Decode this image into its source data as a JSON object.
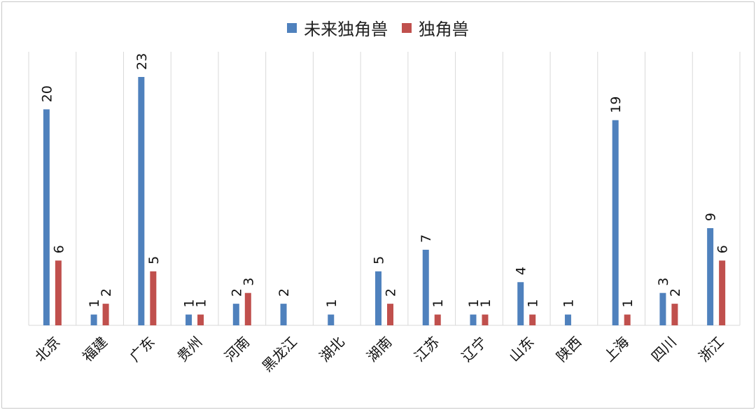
{
  "chart_data": {
    "type": "bar",
    "categories": [
      "北京",
      "福建",
      "广东",
      "贵州",
      "河南",
      "黑龙江",
      "湖北",
      "湖南",
      "江苏",
      "辽宁",
      "山东",
      "陕西",
      "上海",
      "四川",
      "浙江"
    ],
    "series": [
      {
        "name": "未来独角兽",
        "color": "#4F81BD",
        "values": [
          20,
          1,
          23,
          1,
          2,
          2,
          1,
          5,
          7,
          1,
          4,
          1,
          19,
          3,
          9
        ]
      },
      {
        "name": "独角兽",
        "color": "#C0504D",
        "values": [
          6,
          2,
          5,
          1,
          3,
          0,
          0,
          2,
          1,
          1,
          1,
          0,
          1,
          2,
          6
        ]
      }
    ],
    "ylim": [
      0,
      23
    ],
    "grid": "vertical separators",
    "legend_position": "top-center",
    "data_labels": true
  }
}
